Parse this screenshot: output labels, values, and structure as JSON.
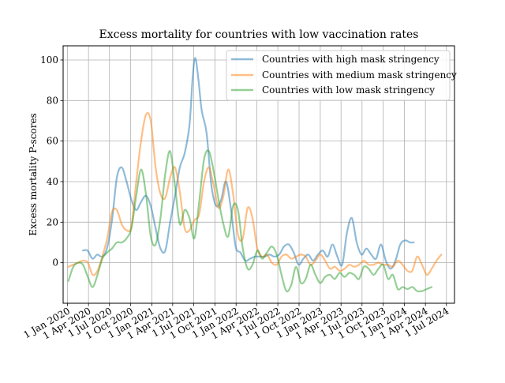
{
  "chart_data": {
    "type": "line",
    "title": "Excess mortality for countries with low vaccination rates",
    "xlabel": "",
    "ylabel": "Excess mortality P-scores",
    "x_axis_type": "date",
    "xlim": [
      "2019-12-13",
      "2024-08-05"
    ],
    "ylim": [
      -20,
      107
    ],
    "yticks": [
      0,
      20,
      40,
      60,
      80,
      100
    ],
    "xticks": [
      {
        "date": "2020-01-01",
        "label": "1 Jan 2020"
      },
      {
        "date": "2020-04-01",
        "label": "1 Apr 2020"
      },
      {
        "date": "2020-07-01",
        "label": "1 Jul 2020"
      },
      {
        "date": "2020-10-01",
        "label": "1 Oct 2020"
      },
      {
        "date": "2021-01-01",
        "label": "1 Jan 2021"
      },
      {
        "date": "2021-04-01",
        "label": "1 Apr 2021"
      },
      {
        "date": "2021-07-01",
        "label": "1 Jul 2021"
      },
      {
        "date": "2021-10-01",
        "label": "1 Oct 2021"
      },
      {
        "date": "2022-01-01",
        "label": "1 Jan 2022"
      },
      {
        "date": "2022-04-01",
        "label": "1 Apr 2022"
      },
      {
        "date": "2022-07-01",
        "label": "1 Jul 2022"
      },
      {
        "date": "2022-10-01",
        "label": "1 Oct 2022"
      },
      {
        "date": "2023-01-01",
        "label": "1 Jan 2023"
      },
      {
        "date": "2023-04-01",
        "label": "1 Apr 2023"
      },
      {
        "date": "2023-07-01",
        "label": "1 Jul 2023"
      },
      {
        "date": "2023-10-01",
        "label": "1 Oct 2023"
      },
      {
        "date": "2024-01-01",
        "label": "1 Jan 2024"
      },
      {
        "date": "2024-04-01",
        "label": "1 Apr 2024"
      },
      {
        "date": "2024-07-01",
        "label": "1 Jul 2024"
      }
    ],
    "grid": true,
    "legend_position": "top-right",
    "series": [
      {
        "name": "Countries with high mask stringency",
        "color": "#1f77b4",
        "points": [
          [
            "2020-03-08",
            6
          ],
          [
            "2020-03-28",
            6
          ],
          [
            "2020-04-18",
            2
          ],
          [
            "2020-05-09",
            4
          ],
          [
            "2020-05-30",
            3
          ],
          [
            "2020-06-20",
            7
          ],
          [
            "2020-07-12",
            21
          ],
          [
            "2020-08-02",
            42
          ],
          [
            "2020-08-23",
            47
          ],
          [
            "2020-09-13",
            40
          ],
          [
            "2020-10-04",
            31
          ],
          [
            "2020-10-25",
            26
          ],
          [
            "2020-11-15",
            30
          ],
          [
            "2020-12-06",
            33
          ],
          [
            "2020-12-27",
            28
          ],
          [
            "2021-01-17",
            17
          ],
          [
            "2021-02-07",
            7
          ],
          [
            "2021-02-28",
            6
          ],
          [
            "2021-03-21",
            20
          ],
          [
            "2021-04-11",
            33
          ],
          [
            "2021-05-02",
            47
          ],
          [
            "2021-05-23",
            54
          ],
          [
            "2021-06-13",
            68
          ],
          [
            "2021-06-27",
            92
          ],
          [
            "2021-07-08",
            101
          ],
          [
            "2021-07-22",
            90
          ],
          [
            "2021-08-05",
            75
          ],
          [
            "2021-08-26",
            64
          ],
          [
            "2021-09-16",
            38
          ],
          [
            "2021-10-07",
            28
          ],
          [
            "2021-10-28",
            31
          ],
          [
            "2021-11-18",
            40
          ],
          [
            "2021-12-09",
            27
          ],
          [
            "2021-12-30",
            8
          ],
          [
            "2022-01-20",
            5
          ],
          [
            "2022-02-10",
            1
          ],
          [
            "2022-03-03",
            2
          ],
          [
            "2022-03-24",
            3
          ],
          [
            "2022-04-14",
            3
          ],
          [
            "2022-05-05",
            3
          ],
          [
            "2022-05-26",
            4
          ],
          [
            "2022-06-16",
            3
          ],
          [
            "2022-07-07",
            4
          ],
          [
            "2022-07-28",
            8
          ],
          [
            "2022-08-18",
            9
          ],
          [
            "2022-09-08",
            5
          ],
          [
            "2022-09-29",
            -1
          ],
          [
            "2022-10-20",
            2
          ],
          [
            "2022-11-10",
            4
          ],
          [
            "2022-12-01",
            1
          ],
          [
            "2022-12-22",
            4
          ],
          [
            "2023-01-12",
            6
          ],
          [
            "2023-02-02",
            3
          ],
          [
            "2023-02-23",
            9
          ],
          [
            "2023-03-16",
            3
          ],
          [
            "2023-04-06",
            -1
          ],
          [
            "2023-04-27",
            15
          ],
          [
            "2023-05-18",
            22
          ],
          [
            "2023-06-08",
            10
          ],
          [
            "2023-06-29",
            4
          ],
          [
            "2023-07-20",
            7
          ],
          [
            "2023-08-10",
            4
          ],
          [
            "2023-08-31",
            2
          ],
          [
            "2023-09-21",
            9
          ],
          [
            "2023-10-12",
            1
          ],
          [
            "2023-11-02",
            -3
          ],
          [
            "2023-11-23",
            1
          ],
          [
            "2023-12-14",
            9
          ],
          [
            "2024-01-04",
            11
          ],
          [
            "2024-01-25",
            10
          ],
          [
            "2024-02-10",
            10
          ]
        ]
      },
      {
        "name": "Countries with medium mask stringency",
        "color": "#ff7f0e",
        "points": [
          [
            "2020-01-05",
            -2
          ],
          [
            "2020-01-26",
            -1
          ],
          [
            "2020-02-16",
            0
          ],
          [
            "2020-03-08",
            1
          ],
          [
            "2020-03-29",
            0
          ],
          [
            "2020-04-19",
            -6
          ],
          [
            "2020-05-10",
            -4
          ],
          [
            "2020-05-31",
            3
          ],
          [
            "2020-06-21",
            12
          ],
          [
            "2020-07-12",
            25
          ],
          [
            "2020-08-02",
            26
          ],
          [
            "2020-08-23",
            19
          ],
          [
            "2020-09-13",
            16
          ],
          [
            "2020-10-04",
            18
          ],
          [
            "2020-10-25",
            40
          ],
          [
            "2020-11-15",
            60
          ],
          [
            "2020-12-06",
            73
          ],
          [
            "2020-12-27",
            70
          ],
          [
            "2021-01-17",
            47
          ],
          [
            "2021-02-07",
            34
          ],
          [
            "2021-02-28",
            32
          ],
          [
            "2021-03-21",
            42
          ],
          [
            "2021-04-11",
            47
          ],
          [
            "2021-05-02",
            35
          ],
          [
            "2021-05-23",
            17
          ],
          [
            "2021-06-13",
            16
          ],
          [
            "2021-07-04",
            21
          ],
          [
            "2021-07-25",
            24
          ],
          [
            "2021-08-15",
            40
          ],
          [
            "2021-09-05",
            47
          ],
          [
            "2021-09-26",
            38
          ],
          [
            "2021-10-17",
            27
          ],
          [
            "2021-11-07",
            33
          ],
          [
            "2021-11-28",
            46
          ],
          [
            "2021-12-19",
            34
          ],
          [
            "2022-01-09",
            14
          ],
          [
            "2022-01-30",
            12
          ],
          [
            "2022-02-20",
            27
          ],
          [
            "2022-03-13",
            22
          ],
          [
            "2022-04-03",
            7
          ],
          [
            "2022-04-24",
            3
          ],
          [
            "2022-05-15",
            4
          ],
          [
            "2022-06-05",
            0
          ],
          [
            "2022-06-26",
            -1
          ],
          [
            "2022-07-17",
            3
          ],
          [
            "2022-08-07",
            4
          ],
          [
            "2022-08-28",
            2
          ],
          [
            "2022-09-18",
            3
          ],
          [
            "2022-10-09",
            4
          ],
          [
            "2022-10-30",
            3
          ],
          [
            "2022-11-20",
            -1
          ],
          [
            "2022-12-11",
            1
          ],
          [
            "2023-01-01",
            4
          ],
          [
            "2023-01-22",
            1
          ],
          [
            "2023-02-12",
            -3
          ],
          [
            "2023-03-05",
            -2
          ],
          [
            "2023-03-26",
            -4
          ],
          [
            "2023-04-16",
            -3
          ],
          [
            "2023-05-07",
            -1
          ],
          [
            "2023-05-28",
            -2
          ],
          [
            "2023-06-18",
            -1
          ],
          [
            "2023-07-09",
            1
          ],
          [
            "2023-07-30",
            -1
          ],
          [
            "2023-08-20",
            -1
          ],
          [
            "2023-09-10",
            0
          ],
          [
            "2023-10-01",
            -1
          ],
          [
            "2023-10-22",
            -1
          ],
          [
            "2023-11-12",
            -2
          ],
          [
            "2023-12-03",
            1
          ],
          [
            "2023-12-24",
            -1
          ],
          [
            "2024-01-14",
            -4
          ],
          [
            "2024-02-04",
            -4
          ],
          [
            "2024-02-25",
            3
          ],
          [
            "2024-03-17",
            -1
          ],
          [
            "2024-04-07",
            -6
          ],
          [
            "2024-04-28",
            -3
          ],
          [
            "2024-05-19",
            1
          ],
          [
            "2024-06-09",
            4
          ]
        ]
      },
      {
        "name": "Countries with low mask stringency",
        "color": "#2ca02c",
        "points": [
          [
            "2020-01-05",
            -9
          ],
          [
            "2020-01-26",
            -2
          ],
          [
            "2020-02-16",
            0
          ],
          [
            "2020-03-08",
            -1
          ],
          [
            "2020-03-29",
            -7
          ],
          [
            "2020-04-19",
            -12
          ],
          [
            "2020-05-10",
            -6
          ],
          [
            "2020-05-31",
            2
          ],
          [
            "2020-06-21",
            5
          ],
          [
            "2020-07-12",
            7
          ],
          [
            "2020-08-02",
            10
          ],
          [
            "2020-08-23",
            10
          ],
          [
            "2020-09-13",
            12
          ],
          [
            "2020-10-04",
            17
          ],
          [
            "2020-10-25",
            33
          ],
          [
            "2020-11-15",
            46
          ],
          [
            "2020-12-06",
            34
          ],
          [
            "2020-12-27",
            13
          ],
          [
            "2021-01-17",
            9
          ],
          [
            "2021-02-07",
            22
          ],
          [
            "2021-02-28",
            44
          ],
          [
            "2021-03-21",
            55
          ],
          [
            "2021-04-11",
            38
          ],
          [
            "2021-05-02",
            19
          ],
          [
            "2021-05-23",
            26
          ],
          [
            "2021-06-13",
            22
          ],
          [
            "2021-07-04",
            12
          ],
          [
            "2021-07-25",
            30
          ],
          [
            "2021-08-15",
            51
          ],
          [
            "2021-09-05",
            55
          ],
          [
            "2021-09-26",
            45
          ],
          [
            "2021-10-17",
            31
          ],
          [
            "2021-11-07",
            19
          ],
          [
            "2021-11-28",
            13
          ],
          [
            "2021-12-19",
            28
          ],
          [
            "2022-01-09",
            26
          ],
          [
            "2022-01-30",
            7
          ],
          [
            "2022-02-20",
            -3
          ],
          [
            "2022-03-13",
            -1
          ],
          [
            "2022-04-03",
            6
          ],
          [
            "2022-04-24",
            2
          ],
          [
            "2022-05-15",
            5
          ],
          [
            "2022-06-05",
            8
          ],
          [
            "2022-06-26",
            4
          ],
          [
            "2022-07-17",
            -6
          ],
          [
            "2022-08-07",
            -14
          ],
          [
            "2022-08-28",
            -11
          ],
          [
            "2022-09-18",
            -2
          ],
          [
            "2022-10-09",
            -10
          ],
          [
            "2022-10-30",
            -8
          ],
          [
            "2022-11-20",
            -1
          ],
          [
            "2022-12-11",
            -6
          ],
          [
            "2023-01-01",
            -10
          ],
          [
            "2023-01-22",
            -7
          ],
          [
            "2023-02-12",
            -6
          ],
          [
            "2023-03-05",
            -8
          ],
          [
            "2023-03-26",
            -5
          ],
          [
            "2023-04-16",
            -7
          ],
          [
            "2023-05-07",
            -5
          ],
          [
            "2023-05-28",
            -6
          ],
          [
            "2023-06-18",
            -8
          ],
          [
            "2023-07-09",
            -2
          ],
          [
            "2023-07-30",
            -3
          ],
          [
            "2023-08-20",
            -6
          ],
          [
            "2023-09-10",
            -3
          ],
          [
            "2023-10-01",
            -1
          ],
          [
            "2023-10-22",
            -8
          ],
          [
            "2023-11-12",
            -6
          ],
          [
            "2023-12-03",
            -13
          ],
          [
            "2023-12-24",
            -12
          ],
          [
            "2024-01-14",
            -13
          ],
          [
            "2024-02-04",
            -12
          ],
          [
            "2024-02-25",
            -14
          ],
          [
            "2024-03-17",
            -14
          ],
          [
            "2024-04-07",
            -13
          ],
          [
            "2024-04-28",
            -12
          ]
        ]
      }
    ]
  }
}
